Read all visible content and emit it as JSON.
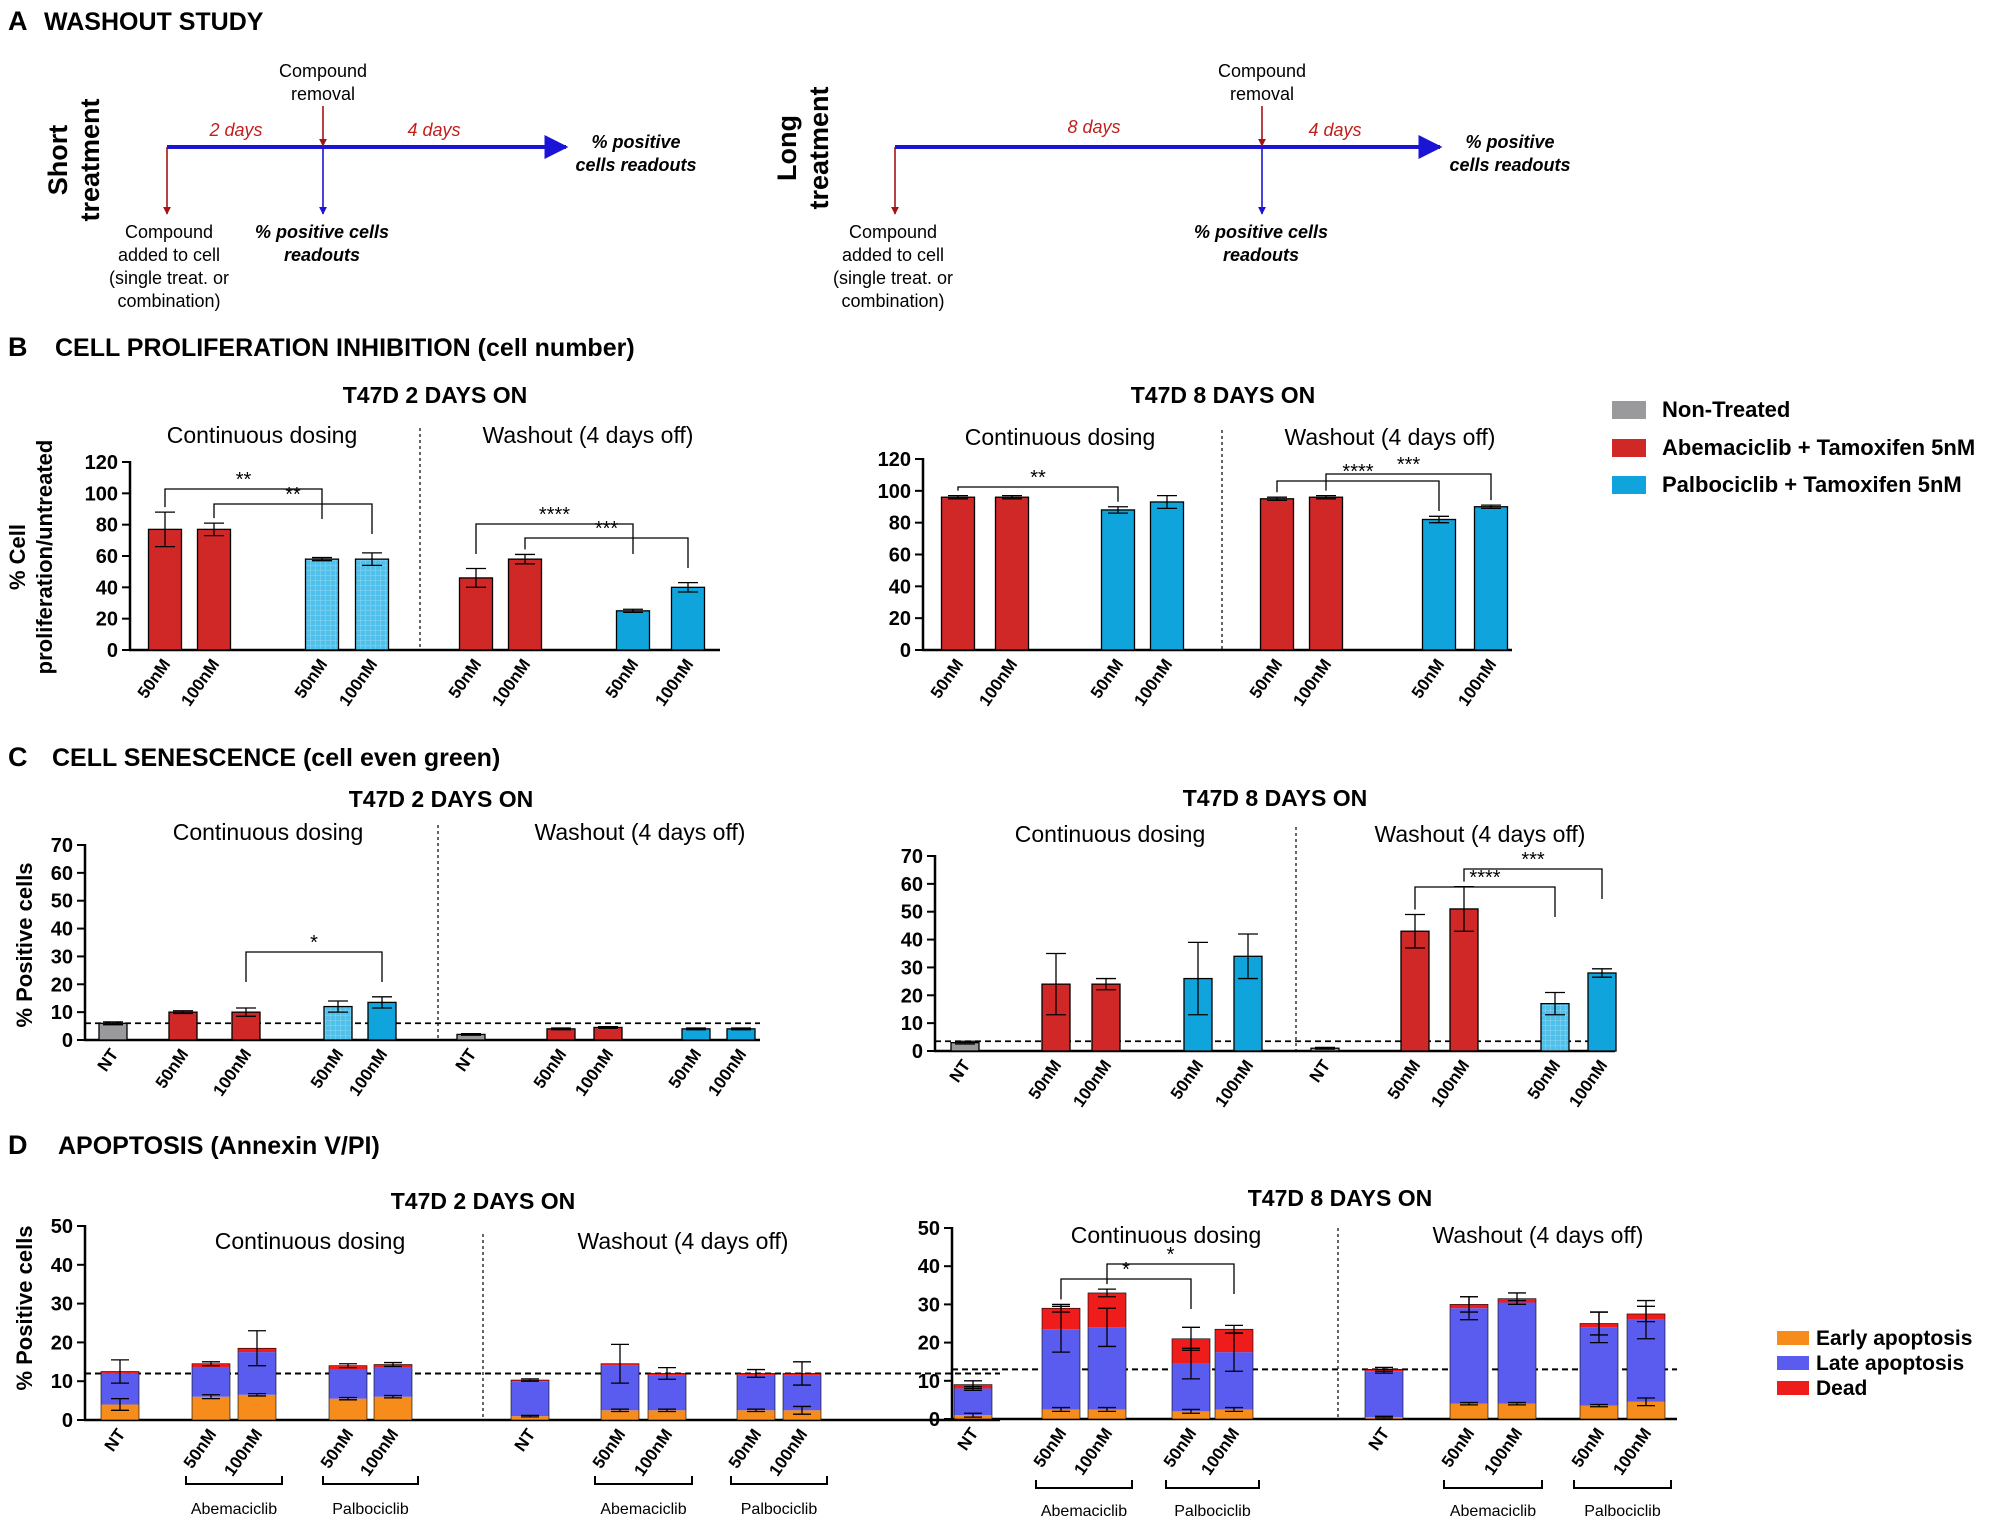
{
  "colors": {
    "nt": "#9a9a9c",
    "abema": "#d02727",
    "palbo": "#10a4dc",
    "palbo_light": "#4fc0ea",
    "early": "#f58c1c",
    "late": "#5a5bef",
    "dead": "#ef1c1c",
    "arrow_blue": "#1b13d6",
    "arrow_red": "#a31515",
    "text_red": "#c0201c"
  },
  "panelA": {
    "letter": "A",
    "title": "WASHOUT STUDY",
    "short": {
      "side_label": [
        "Short",
        "treatment"
      ],
      "seg1": "2 days",
      "seg2": "4 days",
      "removal": [
        "Compound",
        "removal"
      ],
      "readout_end": [
        "% positive",
        "cells readouts"
      ],
      "added": [
        "Compound",
        "added to cell",
        "(single treat. or",
        "combination)"
      ],
      "readout_mid": [
        "% positive cells",
        "readouts"
      ]
    },
    "long": {
      "side_label": [
        "Long",
        "treatment"
      ],
      "seg1": "8 days",
      "seg2": "4 days",
      "removal": [
        "Compound",
        "removal"
      ],
      "readout_end": [
        "% positive",
        "cells readouts"
      ],
      "added": [
        "Compound",
        "added to cell",
        "(single treat. or",
        "combination)"
      ],
      "readout_mid": [
        "% positive cells",
        "readouts"
      ]
    }
  },
  "panelB": {
    "letter": "B",
    "title": "CELL PROLIFERATION INHIBITION (cell number)"
  },
  "panelC": {
    "letter": "C",
    "title": "CELL SENESCENCE (cell even green)"
  },
  "panelD": {
    "letter": "D",
    "title": "APOPTOSIS (Annexin V/PI)"
  },
  "legend_top": [
    "Non-Treated",
    "Abemaciclib + Tamoxifen 5nM",
    "Palbociclib + Tamoxifen 5nM"
  ],
  "legend_bottom": [
    "Early apoptosis",
    "Late  apoptosis",
    "Dead"
  ],
  "chart_data": [
    {
      "id": "B1",
      "type": "bar",
      "title": "T47D 2 DAYS ON",
      "ylabel": [
        "% Cell",
        "proliferation/untreated"
      ],
      "ylim": [
        0,
        120
      ],
      "yticks": [
        0,
        20,
        40,
        60,
        80,
        100,
        120
      ],
      "sections": [
        "Continuous dosing",
        "Washout (4 days off)"
      ],
      "categories": [
        "50nM",
        "100nM",
        "50nM",
        "100nM",
        "50nM",
        "100nM",
        "50nM",
        "100nM"
      ],
      "groups": [
        "abema",
        "abema",
        "palbo_light",
        "palbo_light",
        "abema",
        "abema",
        "palbo",
        "palbo"
      ],
      "values": [
        77,
        77,
        58,
        58,
        46,
        58,
        25,
        40
      ],
      "errors": [
        11,
        4,
        1,
        4,
        6,
        3,
        1,
        3
      ],
      "significance": [
        {
          "from": 0,
          "to": 2,
          "label": "**"
        },
        {
          "from": 1,
          "to": 3,
          "label": "**"
        },
        {
          "from": 4,
          "to": 6,
          "label": "****"
        },
        {
          "from": 5,
          "to": 7,
          "label": "***"
        }
      ]
    },
    {
      "id": "B2",
      "type": "bar",
      "title": "T47D 8 DAYS ON",
      "ylim": [
        0,
        120
      ],
      "yticks": [
        0,
        20,
        40,
        60,
        80,
        100,
        120
      ],
      "sections": [
        "Continuous dosing",
        "Washout (4 days off)"
      ],
      "categories": [
        "50nM",
        "100nM",
        "50nM",
        "100nM",
        "50nM",
        "100nM",
        "50nM",
        "100nM"
      ],
      "groups": [
        "abema",
        "abema",
        "palbo",
        "palbo",
        "abema",
        "abema",
        "palbo",
        "palbo"
      ],
      "values": [
        96,
        96,
        88,
        93,
        95,
        96,
        82,
        90
      ],
      "errors": [
        1,
        1,
        2,
        4,
        1,
        1,
        2,
        1
      ],
      "significance": [
        {
          "from": 0,
          "to": 2,
          "label": "**"
        },
        {
          "from": 4,
          "to": 6,
          "label": "****"
        },
        {
          "from": 5,
          "to": 7,
          "label": "***"
        }
      ]
    },
    {
      "id": "C1",
      "type": "bar",
      "title": "T47D 2 DAYS ON",
      "ylabel": [
        "% Positive cells"
      ],
      "ylim": [
        0,
        70
      ],
      "yticks": [
        0,
        10,
        20,
        30,
        40,
        50,
        60,
        70
      ],
      "sections": [
        "Continuous dosing",
        "Washout (4 days off)"
      ],
      "categories": [
        "NT",
        "50nM",
        "100nM",
        "50nM",
        "100nM",
        "NT",
        "50nM",
        "100nM",
        "50nM",
        "100nM"
      ],
      "groups": [
        "nt",
        "abema",
        "abema",
        "palbo_light",
        "palbo",
        "nt",
        "abema",
        "abema",
        "palbo",
        "palbo"
      ],
      "values": [
        6,
        10,
        10,
        12,
        13.5,
        2,
        4,
        4.5,
        4,
        4
      ],
      "errors": [
        0.5,
        0.5,
        1.5,
        2,
        2,
        0.3,
        0.3,
        0.3,
        0.3,
        0.3
      ],
      "baseline": 6,
      "significance": [
        {
          "from": 2,
          "to": 4,
          "label": "*"
        }
      ]
    },
    {
      "id": "C2",
      "type": "bar",
      "title": "T47D 8 DAYS ON",
      "ylim": [
        0,
        70
      ],
      "yticks": [
        0,
        10,
        20,
        30,
        40,
        50,
        60,
        70
      ],
      "sections": [
        "Continuous dosing",
        "Washout (4 days off)"
      ],
      "categories": [
        "NT",
        "50nM",
        "100nM",
        "50nM",
        "100nM",
        "NT",
        "50nM",
        "100nM",
        "50nM",
        "100nM"
      ],
      "groups": [
        "nt",
        "abema",
        "abema",
        "palbo",
        "palbo",
        "nt",
        "abema",
        "abema",
        "palbo_light",
        "palbo"
      ],
      "values": [
        3,
        24,
        24,
        26,
        34,
        1,
        43,
        51,
        17,
        28
      ],
      "errors": [
        0.5,
        11,
        2,
        13,
        8,
        0.3,
        6,
        8,
        4,
        1.5
      ],
      "baseline": 3.5,
      "significance": [
        {
          "from": 6,
          "to": 8,
          "label": "****"
        },
        {
          "from": 7,
          "to": 9,
          "label": "***"
        }
      ]
    },
    {
      "id": "D1",
      "type": "stacked-bar",
      "title": "T47D 2 DAYS ON",
      "ylabel": [
        "% Positive cells"
      ],
      "ylim": [
        0,
        50
      ],
      "yticks": [
        0,
        10,
        20,
        30,
        40,
        50
      ],
      "sections": [
        "Continuous dosing",
        "Washout (4 days off)"
      ],
      "categories": [
        "NT",
        "50nM",
        "100nM",
        "50nM",
        "100nM",
        "NT",
        "50nM",
        "100nM",
        "50nM",
        "100nM"
      ],
      "brackets": [
        {
          "from": 1,
          "to": 2,
          "label": "Abemaciclib"
        },
        {
          "from": 3,
          "to": 4,
          "label": "Palbociclib"
        },
        {
          "from": 6,
          "to": 7,
          "label": "Abemaciclib"
        },
        {
          "from": 8,
          "to": 9,
          "label": "Palbociclib"
        }
      ],
      "series": [
        {
          "name": "Early apoptosis",
          "values": [
            4,
            6,
            6.5,
            5.5,
            6,
            1,
            2.5,
            2.5,
            2.5,
            2.5
          ]
        },
        {
          "name": "Late  apoptosis",
          "values": [
            8,
            7.5,
            11,
            7.5,
            7.5,
            9,
            11.5,
            9,
            9,
            9
          ]
        },
        {
          "name": "Dead",
          "values": [
            0.5,
            1,
            1,
            1,
            0.8,
            0.3,
            0.5,
            0.5,
            0.5,
            0.5
          ]
        }
      ],
      "err_total": [
        3,
        0.5,
        4.5,
        0.5,
        0.5,
        0.3,
        5,
        1.5,
        1,
        3
      ],
      "err_early": [
        1.5,
        0.5,
        0.3,
        0.3,
        0.3,
        0.2,
        0.3,
        0.3,
        0.3,
        1
      ],
      "baseline": 12
    },
    {
      "id": "D2",
      "type": "stacked-bar",
      "title": "T47D 8 DAYS ON",
      "ylim": [
        0,
        50
      ],
      "yticks": [
        0,
        10,
        20,
        30,
        40,
        50
      ],
      "sections": [
        "Continuous dosing",
        "Washout (4 days off)"
      ],
      "categories": [
        "NT",
        "50nM",
        "100nM",
        "50nM",
        "100nM",
        "NT",
        "50nM",
        "100nM",
        "50nM",
        "100nM"
      ],
      "brackets": [
        {
          "from": 1,
          "to": 2,
          "label": "Abemaciclib"
        },
        {
          "from": 3,
          "to": 4,
          "label": "Palbociclib"
        },
        {
          "from": 6,
          "to": 7,
          "label": "Abemaciclib"
        },
        {
          "from": 8,
          "to": 9,
          "label": "Palbociclib"
        }
      ],
      "series": [
        {
          "name": "Early apoptosis",
          "values": [
            1,
            2.5,
            2.5,
            2,
            2.5,
            0.5,
            4,
            4,
            3.5,
            4.5
          ]
        },
        {
          "name": "Late  apoptosis",
          "values": [
            7,
            21,
            21.5,
            12.5,
            15,
            12,
            25,
            26.5,
            20.5,
            21.5
          ]
        },
        {
          "name": "Dead",
          "values": [
            1,
            5.5,
            9,
            6.5,
            6,
            0.5,
            1,
            1,
            1,
            1.5
          ]
        }
      ],
      "err_total": [
        1,
        1,
        1,
        3,
        1,
        0.5,
        2,
        1.5,
        3,
        2
      ],
      "err_inner": [
        0.5,
        6,
        5,
        4,
        5,
        0.5,
        3,
        0.5,
        4,
        5
      ],
      "err_early": [
        0.5,
        0.5,
        0.5,
        0.5,
        0.5,
        0.2,
        0.3,
        0.3,
        0.3,
        1
      ],
      "baseline": 13,
      "significance": [
        {
          "from": 1,
          "to": 3,
          "label": "*"
        },
        {
          "from": 2,
          "to": 4,
          "label": "*"
        }
      ]
    }
  ]
}
